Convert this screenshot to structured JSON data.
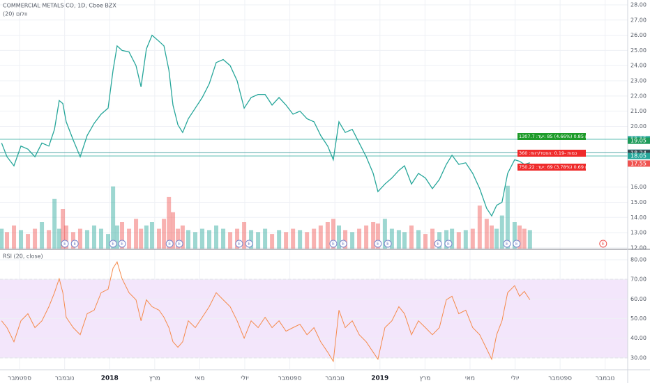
{
  "chart_data": [
    {
      "type": "line",
      "title": "COMMERCIAL METALS CO, 1D, Cboe BZX",
      "subtitle": "(20) וולום",
      "color": "#26a69a",
      "down_color": "#ef5350",
      "x": [
        0.2,
        0.44,
        0.75,
        1.06,
        1.37,
        1.68,
        1.99,
        2.3,
        2.55,
        2.76,
        2.92,
        3.07,
        3.38,
        3.69,
        4.0,
        4.31,
        4.62,
        4.93,
        5.15,
        5.33,
        5.55,
        5.86,
        6.17,
        6.39,
        6.63,
        6.88,
        7.19,
        7.41,
        7.63,
        7.81,
        8.03,
        8.24,
        8.49,
        8.8,
        9.11,
        9.42,
        9.73,
        10.04,
        10.35,
        10.66,
        10.97,
        11.28,
        11.59,
        11.9,
        12.21,
        12.52,
        12.83,
        13.14,
        13.45,
        13.76,
        14.07,
        14.37,
        14.68,
        14.93,
        15.18,
        15.46,
        15.77,
        16.08,
        16.39,
        16.7,
        16.91,
        17.22,
        17.53,
        17.84,
        18.09,
        18.4,
        18.71,
        19.02,
        19.33,
        19.64,
        19.95,
        20.2,
        20.5,
        20.81,
        21.12,
        21.43,
        21.74,
        21.96,
        22.18,
        22.42,
        22.67,
        22.98,
        23.2,
        23.41,
        23.66
      ],
      "values": [
        18.9,
        18.0,
        17.4,
        18.7,
        18.5,
        18.0,
        18.9,
        18.7,
        19.8,
        21.7,
        21.5,
        20.3,
        19.1,
        18.0,
        19.4,
        20.2,
        20.8,
        21.2,
        23.7,
        25.3,
        25.0,
        24.9,
        24.0,
        22.6,
        25.1,
        26.0,
        25.6,
        25.3,
        23.7,
        21.4,
        20.1,
        19.6,
        20.5,
        21.2,
        21.9,
        22.8,
        24.2,
        24.4,
        24.0,
        23.0,
        21.2,
        21.9,
        22.1,
        22.1,
        21.4,
        21.9,
        21.4,
        20.8,
        21.0,
        20.5,
        20.3,
        19.4,
        18.7,
        17.8,
        20.3,
        19.6,
        19.8,
        18.9,
        18.0,
        16.9,
        15.7,
        16.2,
        16.6,
        17.1,
        17.4,
        16.2,
        16.9,
        16.6,
        15.9,
        16.5,
        17.5,
        18.1,
        17.5,
        17.6,
        16.9,
        15.9,
        14.6,
        14.1,
        14.8,
        15.0,
        16.9,
        17.8,
        17.7,
        17.5,
        17.6
      ],
      "volume": [
        30,
        25,
        35,
        28,
        22,
        30,
        40,
        28,
        75,
        30,
        60,
        35,
        25,
        30,
        28,
        35,
        30,
        22,
        94,
        35,
        40,
        30,
        45,
        30,
        35,
        40,
        30,
        45,
        78,
        55,
        30,
        35,
        28,
        25,
        30,
        28,
        35,
        30,
        25,
        30,
        40,
        28,
        25,
        30,
        22,
        28,
        25,
        30,
        28,
        25,
        30,
        35,
        40,
        45,
        35,
        28,
        25,
        30,
        35,
        40,
        38,
        45,
        30,
        28,
        25,
        35,
        28,
        22,
        30,
        25,
        28,
        30,
        25,
        28,
        30,
        65,
        45,
        35,
        30,
        50,
        95,
        40,
        35,
        30,
        28
      ],
      "vlim": [
        0,
        100
      ],
      "xlim": [
        0.13,
        28
      ],
      "xticks": [
        {
          "value": 1,
          "label": "ספטמבר"
        },
        {
          "value": 3,
          "label": "נובמבר"
        },
        {
          "value": 5,
          "label": "2018"
        },
        {
          "value": 7,
          "label": "מרץ"
        },
        {
          "value": 9,
          "label": "מאי"
        },
        {
          "value": 11,
          "label": "יולי"
        },
        {
          "value": 13,
          "label": "ספטמבר"
        },
        {
          "value": 15,
          "label": "נובמבר"
        },
        {
          "value": 17,
          "label": "2019"
        },
        {
          "value": 19,
          "label": "מרץ"
        },
        {
          "value": 21,
          "label": "מאי"
        },
        {
          "value": 23,
          "label": "יולי"
        },
        {
          "value": 25,
          "label": "ספטמבר"
        },
        {
          "value": 27,
          "label": "נובמבר"
        }
      ],
      "ylim": [
        11.95,
        28.32
      ],
      "yticks": [
        {
          "value": 12,
          "label": "12.00"
        },
        {
          "value": 13,
          "label": "13.00"
        },
        {
          "value": 14,
          "label": "14.00"
        },
        {
          "value": 15,
          "label": "15.00"
        },
        {
          "value": 16,
          "label": "16.00"
        },
        {
          "value": 20,
          "label": "20.00"
        },
        {
          "value": 21,
          "label": "21.00"
        },
        {
          "value": 22,
          "label": "22.00"
        },
        {
          "value": 23,
          "label": "23.00"
        },
        {
          "value": 24,
          "label": "24.00"
        },
        {
          "value": 25,
          "label": "25.00"
        },
        {
          "value": 26,
          "label": "26.00"
        },
        {
          "value": 27,
          "label": "27.00"
        },
        {
          "value": 28,
          "label": "28.00"
        }
      ],
      "grid": true,
      "price_labels": [
        {
          "value": 19.15,
          "label": "19.15",
          "color": "#26a69a",
          "line": true
        },
        {
          "value": 19.05,
          "label": "19.05",
          "color": "#1e9b5a",
          "line": false
        },
        {
          "value": 18.27,
          "label": "18.27",
          "color": "#3a9a9a",
          "line": true
        },
        {
          "value": 18.24,
          "label": "18.24",
          "color": "#37474f",
          "line": false
        },
        {
          "value": 18.05,
          "label": "18.05",
          "color": "#26a69a",
          "line": true
        },
        {
          "value": 17.55,
          "label": "17.55",
          "color": "#ef5350",
          "line": false
        }
      ],
      "orders": [
        {
          "text": "1307.7 :סכום 0.85 (4.66%) 85 :יעד",
          "color": "#1e9b2a"
        },
        {
          "text": "360 :כמות -0.19 :הפסד/רווח",
          "color": "#ef2b2b"
        },
        {
          "text": "750.22 :סכום 0.69 (3.78%) 69 :יעד",
          "color": "#ef2b2b"
        }
      ],
      "earnings": [
        3.01,
        3.45,
        5.15,
        5.55,
        7.66,
        8.09,
        10.75,
        11.19,
        14.93,
        15.37,
        16.91,
        17.35,
        19.58,
        20.04,
        22.64,
        23.07,
        26.91
      ],
      "earnings_label": "E"
    },
    {
      "type": "line",
      "title": "RSI (20, close)",
      "color": "#f58a4b",
      "values": [
        48.9,
        45.4,
        38.2,
        48.9,
        52.5,
        45.4,
        48.9,
        56.1,
        63.2,
        70.4,
        63.2,
        50.7,
        45.4,
        41.8,
        52.5,
        54.3,
        63.2,
        65,
        75.7,
        78.9,
        70.4,
        63.2,
        59.6,
        48.9,
        59.6,
        56.1,
        54.3,
        50.7,
        45.4,
        38.2,
        35.4,
        38.2,
        48.9,
        45.4,
        50.7,
        56.1,
        63.2,
        59.6,
        56.1,
        48.9,
        40,
        48.9,
        45.4,
        50.7,
        45.4,
        48.9,
        43.6,
        45.4,
        47.1,
        41.8,
        45.4,
        38.2,
        32.9,
        28.2,
        54.3,
        45.4,
        48.9,
        41.8,
        38.2,
        32.9,
        29.3,
        45.4,
        48.9,
        56.1,
        52.5,
        41.8,
        48.9,
        45.4,
        41.8,
        45.4,
        59.6,
        61.4,
        52.5,
        54.3,
        45.4,
        41.8,
        34.6,
        29.3,
        41.8,
        48.9,
        63.2,
        66.8,
        61.4,
        63.9,
        59.6
      ],
      "ylim": [
        24.3,
        83.9
      ],
      "yticks": [
        {
          "value": 30,
          "label": "30.00"
        },
        {
          "value": 40,
          "label": "40.00"
        },
        {
          "value": 50,
          "label": "50.00"
        },
        {
          "value": 60,
          "label": "60.00"
        },
        {
          "value": 70,
          "label": "70.00"
        },
        {
          "value": 80,
          "label": "80.00"
        }
      ],
      "band": [
        30,
        70
      ],
      "band_color": "#f3e6fb"
    }
  ]
}
